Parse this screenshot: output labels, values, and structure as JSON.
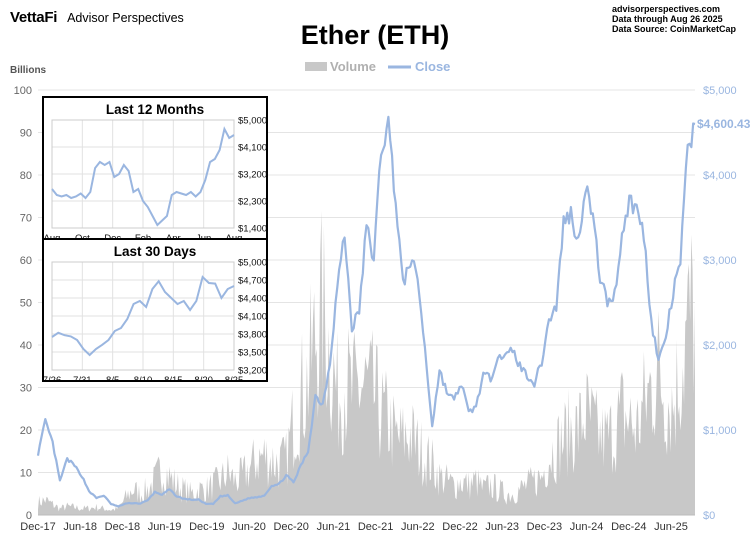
{
  "header": {
    "brand": "VettaFi",
    "brand_sub": "Advisor Perspectives",
    "source_lines": [
      "advisorperspectives.com",
      "Data through Aug 26 2025",
      "Data Source: CoinMarketCap"
    ]
  },
  "chart_data": [
    {
      "type": "area+line",
      "title": "Ether (ETH)",
      "legend": [
        {
          "name": "Volume",
          "color": "#c8c8c8",
          "kind": "area"
        },
        {
          "name": "Close",
          "color": "#9ab6e0",
          "kind": "line"
        }
      ],
      "legend_placement": "top-center",
      "left_axis": {
        "label": "Billions",
        "ylim": [
          0,
          100
        ],
        "ticks": [
          "0",
          "10",
          "20",
          "30",
          "40",
          "50",
          "60",
          "70",
          "80",
          "90",
          "100"
        ]
      },
      "right_axis": {
        "ylim": [
          0,
          5000
        ],
        "ticks": [
          "$0",
          "$1,000",
          "$2,000",
          "$3,000",
          "$4,000",
          "$5,000"
        ]
      },
      "x_ticks": [
        "Dec-17",
        "Jun-18",
        "Dec-18",
        "Jun-19",
        "Dec-19",
        "Jun-20",
        "Dec-20",
        "Jun-21",
        "Dec-21",
        "Jun-22",
        "Dec-22",
        "Jun-23",
        "Dec-23",
        "Jun-24",
        "Dec-24",
        "Jun-25"
      ],
      "grid": true,
      "last_label": "$4,600.43",
      "close_monthly": {
        "start": "Dec-17",
        "values": [
          720,
          1100,
          850,
          400,
          660,
          580,
          460,
          280,
          200,
          230,
          130,
          100,
          135,
          140,
          135,
          170,
          270,
          240,
          300,
          220,
          190,
          180,
          180,
          130,
          130,
          220,
          230,
          135,
          170,
          200,
          210,
          230,
          345,
          360,
          470,
          380,
          580,
          750,
          1400,
          1300,
          1800,
          2700,
          3300,
          2200,
          2400,
          3400,
          3000,
          4300,
          4600,
          3700,
          2700,
          3000,
          2800,
          1950,
          1050,
          1700,
          1450,
          1350,
          1550,
          1200,
          1280,
          1650,
          1600,
          1900,
          1850,
          1950,
          1750,
          1650,
          1550,
          1800,
          2300,
          2450,
          3450,
          3550,
          3200,
          3900,
          3500,
          2800,
          2500,
          2600,
          3300,
          3700,
          3600,
          3300,
          2300,
          1800,
          2100,
          2600,
          3000,
          4300,
          4600
        ]
      },
      "volume_monthly": {
        "start": "Dec-17",
        "values": [
          3,
          3.5,
          2.5,
          1.5,
          2,
          1.8,
          1.5,
          1.6,
          1.8,
          1.5,
          1.2,
          1.5,
          4,
          6,
          5,
          6,
          8,
          11,
          9,
          7,
          6,
          5,
          6,
          6,
          7,
          8,
          10,
          8,
          9,
          11,
          13,
          14,
          13,
          12,
          13,
          22,
          28,
          32,
          42,
          48,
          38,
          28,
          32,
          28,
          30,
          30,
          28,
          24,
          22,
          18,
          18,
          19,
          16,
          14,
          12,
          9,
          8,
          7,
          8,
          7,
          8,
          6,
          7,
          6,
          5,
          5,
          6,
          7,
          8,
          9,
          14,
          16,
          18,
          20,
          20,
          24,
          21,
          18,
          18,
          20,
          24,
          22,
          20,
          26,
          30,
          34,
          28,
          26,
          34,
          44,
          50
        ]
      }
    },
    {
      "type": "line",
      "title": "Last 12 Months",
      "x_ticks": [
        "Aug",
        "Oct",
        "Dec",
        "Feb",
        "Apr",
        "Jun",
        "Aug"
      ],
      "y_ticks": [
        "$1,400",
        "$2,300",
        "$3,200",
        "$4,100",
        "$5,000"
      ],
      "ylim": [
        1400,
        5000
      ],
      "values": [
        2700,
        2500,
        2450,
        2500,
        2400,
        2450,
        2550,
        2400,
        2600,
        3400,
        3600,
        3500,
        3600,
        3100,
        3200,
        3500,
        3300,
        2600,
        2700,
        2300,
        2100,
        1800,
        1500,
        1650,
        1800,
        2500,
        2600,
        2550,
        2500,
        2600,
        2450,
        2600,
        3000,
        3600,
        3700,
        4000,
        4700,
        4400,
        4500
      ]
    },
    {
      "type": "line",
      "title": "Last 30 Days",
      "x_ticks": [
        "7/26",
        "7/31",
        "8/5",
        "8/10",
        "8/15",
        "8/20",
        "8/25"
      ],
      "y_ticks": [
        "$3,200",
        "$3,500",
        "$3,800",
        "$4,100",
        "$4,400",
        "$4,700",
        "$5,000"
      ],
      "ylim": [
        3200,
        5000
      ],
      "values": [
        3750,
        3820,
        3780,
        3760,
        3700,
        3550,
        3450,
        3550,
        3620,
        3700,
        3850,
        3900,
        4050,
        4300,
        4350,
        4250,
        4550,
        4680,
        4500,
        4400,
        4300,
        4350,
        4200,
        4350,
        4750,
        4650,
        4640,
        4400,
        4550,
        4600
      ]
    }
  ]
}
